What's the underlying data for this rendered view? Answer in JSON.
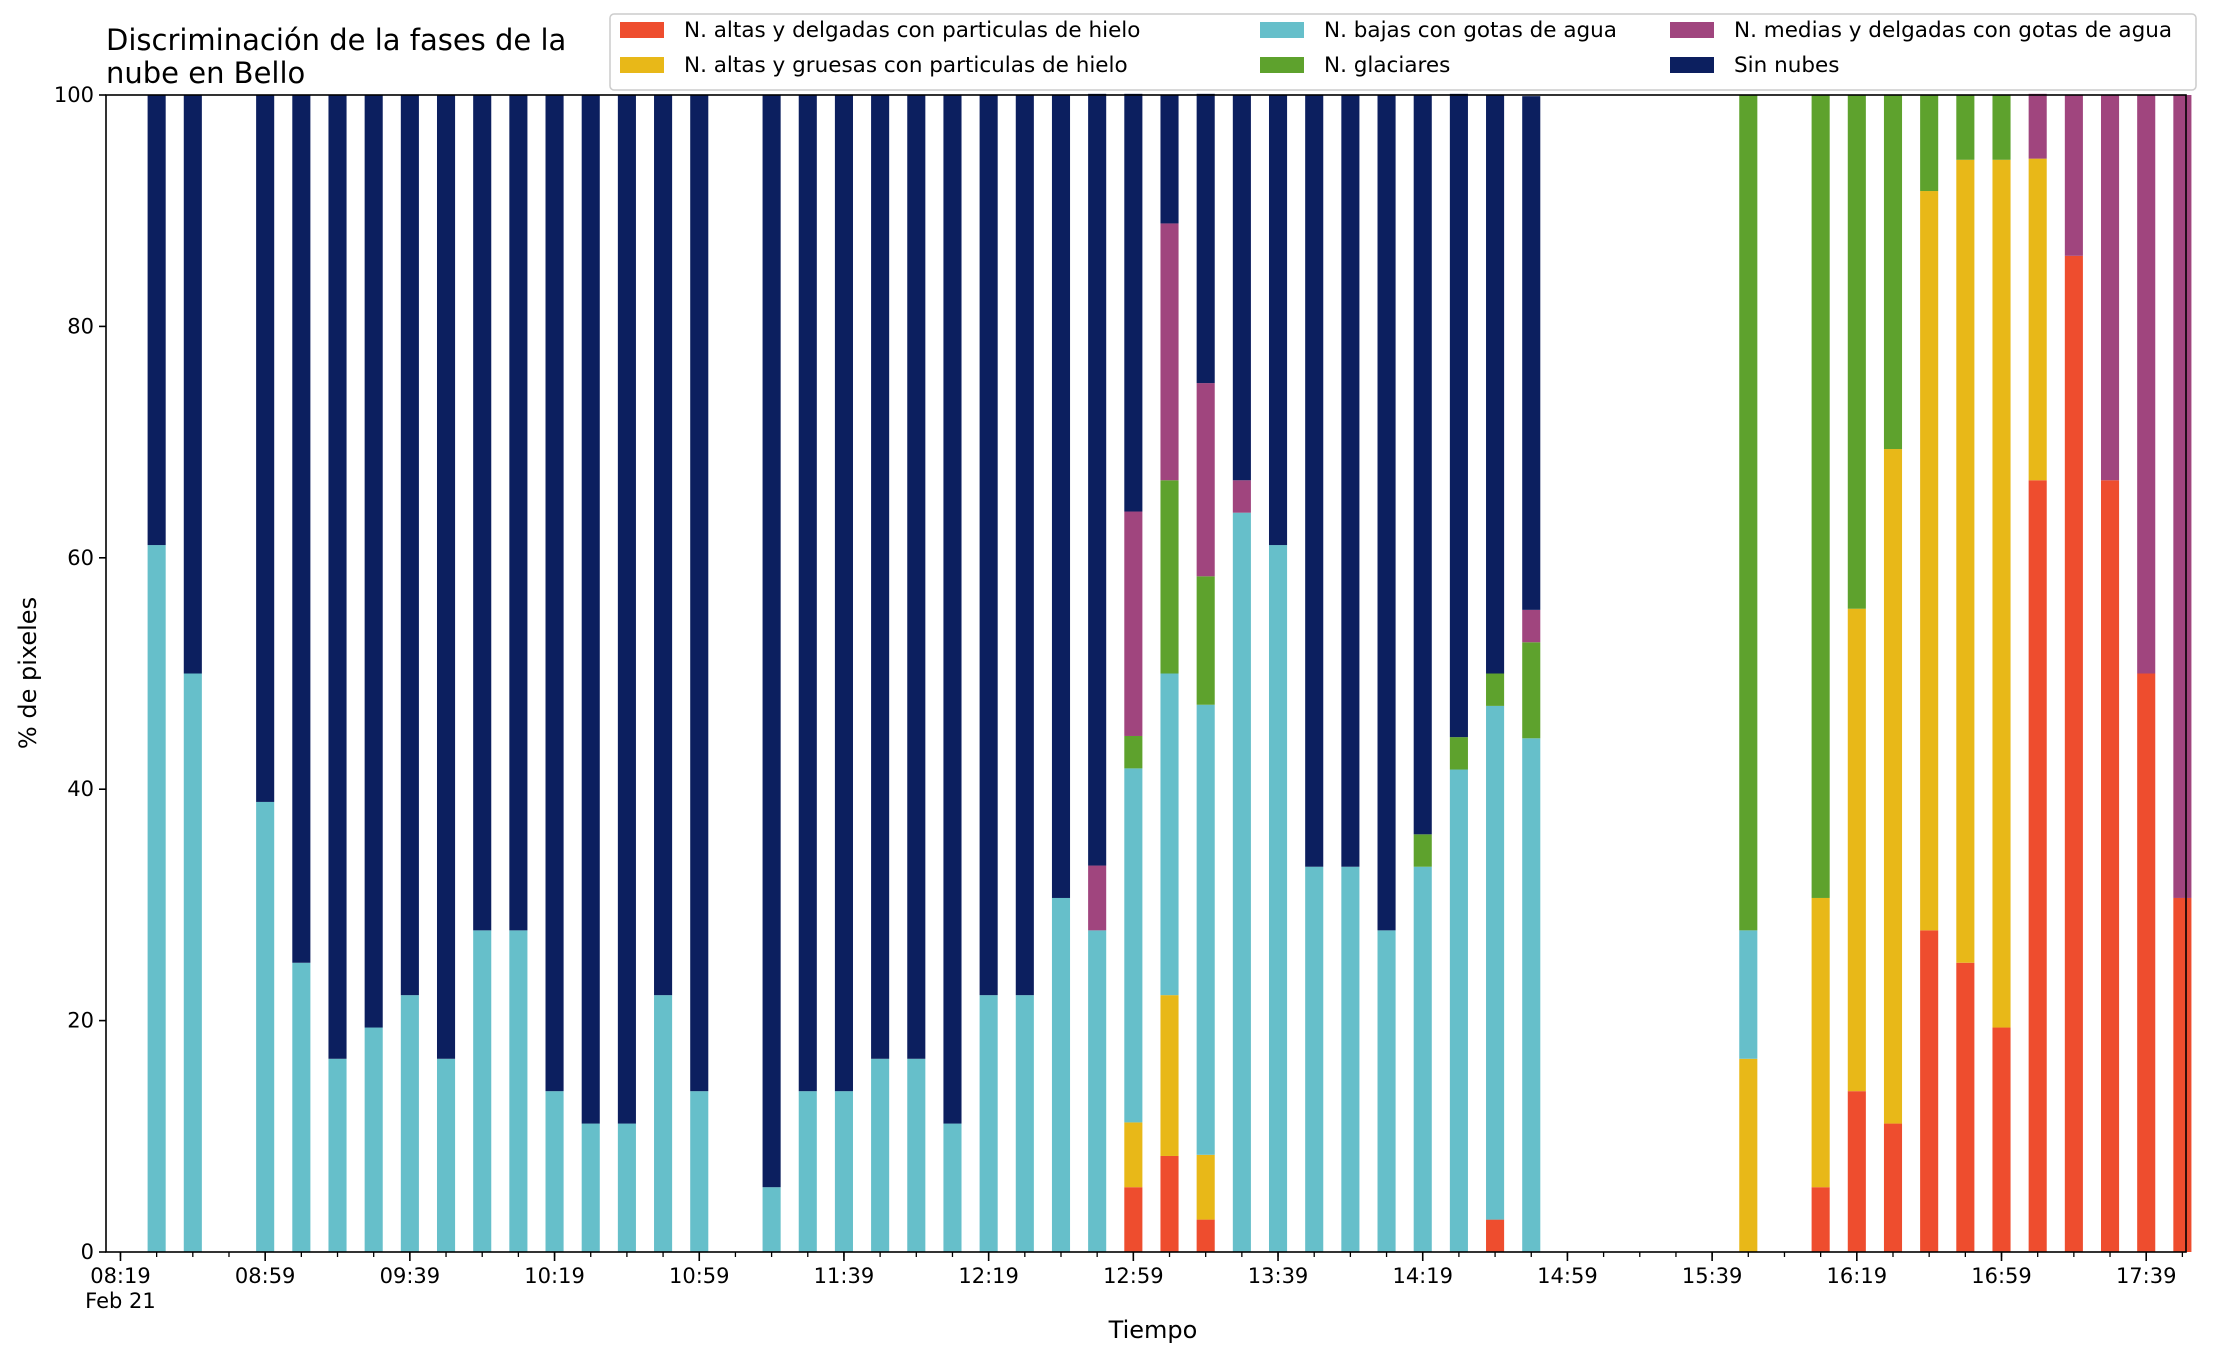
{
  "chart_data": {
    "type": "bar",
    "stacked": true,
    "title": [
      "Discriminación de la fases de la",
      "nube en Bello"
    ],
    "xlabel": "Tiempo",
    "ylabel": "% de pixeles",
    "ylim": [
      0,
      100
    ],
    "y_ticks": [
      "0",
      "20",
      "40",
      "60",
      "80",
      "100"
    ],
    "x_ticks": [
      {
        "label": "08:19",
        "sublabel": "Feb 21",
        "minute": 499
      },
      {
        "label": "08:59",
        "minute": 539
      },
      {
        "label": "09:39",
        "minute": 579
      },
      {
        "label": "10:19",
        "minute": 619
      },
      {
        "label": "10:59",
        "minute": 659
      },
      {
        "label": "11:39",
        "minute": 699
      },
      {
        "label": "12:19",
        "minute": 739
      },
      {
        "label": "12:59",
        "minute": 779
      },
      {
        "label": "13:39",
        "minute": 819
      },
      {
        "label": "14:19",
        "minute": 859
      },
      {
        "label": "14:59",
        "minute": 899
      },
      {
        "label": "15:39",
        "minute": 939
      },
      {
        "label": "16:19",
        "minute": 979
      },
      {
        "label": "16:59",
        "minute": 1019
      },
      {
        "label": "17:39",
        "minute": 1059
      }
    ],
    "x_minor_step_minutes": 10,
    "x_range_minutes": [
      495,
      1070
    ],
    "bar_width_minutes": 5,
    "grid": false,
    "legend_position": "top-right",
    "series": [
      {
        "name": "N. altas y delgadas con particulas de hielo",
        "color": "#ee4d2e"
      },
      {
        "name": "N. altas y gruesas con particulas de hielo",
        "color": "#e8b818"
      },
      {
        "name": "N. bajas con gotas de agua",
        "color": "#66bfca"
      },
      {
        "name": "N. glaciares",
        "color": "#5ea22d"
      },
      {
        "name": "N. medias y delgadas con gotas de agua",
        "color": "#a0457e"
      },
      {
        "name": "Sin nubes",
        "color": "#0c1f5f"
      }
    ],
    "time_of_day": [
      "08:29",
      "08:39",
      "08:59",
      "09:09",
      "09:19",
      "09:29",
      "09:39",
      "09:49",
      "09:59",
      "10:09",
      "10:19",
      "10:29",
      "10:39",
      "10:49",
      "10:59",
      "11:19",
      "11:29",
      "11:39",
      "11:49",
      "11:59",
      "12:09",
      "12:19",
      "12:29",
      "12:39",
      "12:49",
      "12:59",
      "13:09",
      "13:19",
      "13:29",
      "13:39",
      "13:49",
      "13:59",
      "14:09",
      "14:19",
      "14:29",
      "14:39",
      "14:49",
      "15:49",
      "16:09",
      "16:19",
      "16:29",
      "16:39",
      "16:49",
      "16:59",
      "17:09",
      "17:19",
      "17:29",
      "17:39",
      "17:49"
    ],
    "values": [
      [
        0,
        0,
        61.1,
        0,
        0,
        38.9
      ],
      [
        0,
        0,
        50,
        0,
        0,
        50
      ],
      [
        0,
        0,
        38.9,
        0,
        0,
        61.1
      ],
      [
        0,
        0,
        25,
        0,
        0,
        75
      ],
      [
        0,
        0,
        16.7,
        0,
        0,
        83.3
      ],
      [
        0,
        0,
        19.4,
        0,
        0,
        80.6
      ],
      [
        0,
        0,
        22.2,
        0,
        0,
        77.8
      ],
      [
        0,
        0,
        16.7,
        0,
        0,
        83.3
      ],
      [
        0,
        0,
        27.8,
        0,
        0,
        72.2
      ],
      [
        0,
        0,
        27.8,
        0,
        0,
        72.2
      ],
      [
        0,
        0,
        13.9,
        0,
        0,
        86.1
      ],
      [
        0,
        0,
        11.1,
        0,
        0,
        88.9
      ],
      [
        0,
        0,
        11.1,
        0,
        0,
        88.9
      ],
      [
        0,
        0,
        22.2,
        0,
        0,
        77.8
      ],
      [
        0,
        0,
        13.9,
        0,
        0,
        86.1
      ],
      [
        0,
        0,
        5.6,
        0,
        0,
        94.4
      ],
      [
        0,
        0,
        13.9,
        0,
        0,
        86.1
      ],
      [
        0,
        0,
        13.9,
        0,
        0,
        86.1
      ],
      [
        0,
        0,
        16.7,
        0,
        0,
        83.3
      ],
      [
        0,
        0,
        16.7,
        0,
        0,
        83.3
      ],
      [
        0,
        0,
        11.1,
        0,
        0,
        88.9
      ],
      [
        0,
        0,
        22.2,
        0,
        0,
        77.8
      ],
      [
        0,
        0,
        22.2,
        0,
        0,
        77.8
      ],
      [
        0,
        0,
        30.6,
        0,
        0,
        69.4
      ],
      [
        0,
        0,
        27.8,
        0,
        5.6,
        66.7
      ],
      [
        5.6,
        5.6,
        30.6,
        2.8,
        19.4,
        36.1
      ],
      [
        8.3,
        13.9,
        27.8,
        16.7,
        22.2,
        11.1
      ],
      [
        2.8,
        5.6,
        38.9,
        11.1,
        16.7,
        25
      ],
      [
        0,
        0,
        63.9,
        0,
        2.8,
        33.3
      ],
      [
        0,
        0,
        61.1,
        0,
        0,
        38.9
      ],
      [
        0,
        0,
        33.3,
        0,
        0,
        66.7
      ],
      [
        0,
        0,
        33.3,
        0,
        0,
        66.7
      ],
      [
        0,
        0,
        27.8,
        0,
        0,
        72.2
      ],
      [
        0,
        0,
        33.3,
        2.8,
        0,
        63.9
      ],
      [
        0,
        0,
        41.7,
        2.8,
        0,
        55.6
      ],
      [
        2.8,
        0,
        44.4,
        2.8,
        0,
        50
      ],
      [
        0,
        0,
        44.4,
        8.3,
        2.8,
        44.4
      ],
      [
        0,
        16.7,
        11.1,
        72.2,
        0,
        0
      ],
      [
        5.6,
        25,
        0,
        69.4,
        0,
        0
      ],
      [
        13.9,
        41.7,
        0,
        44.4,
        0,
        0
      ],
      [
        11.1,
        58.3,
        0,
        30.6,
        0,
        0
      ],
      [
        27.8,
        63.9,
        0,
        8.3,
        0,
        0
      ],
      [
        25,
        69.4,
        0,
        5.6,
        0,
        0
      ],
      [
        19.4,
        75,
        0,
        5.6,
        0,
        0
      ],
      [
        66.7,
        27.8,
        0,
        0,
        5.6,
        0
      ],
      [
        86.1,
        0,
        0,
        0,
        13.9,
        0
      ],
      [
        66.7,
        0,
        0,
        0,
        33.3,
        0
      ],
      [
        50,
        0,
        0,
        0,
        50,
        0
      ],
      [
        30.6,
        0,
        0,
        0,
        69.4,
        0
      ]
    ]
  }
}
